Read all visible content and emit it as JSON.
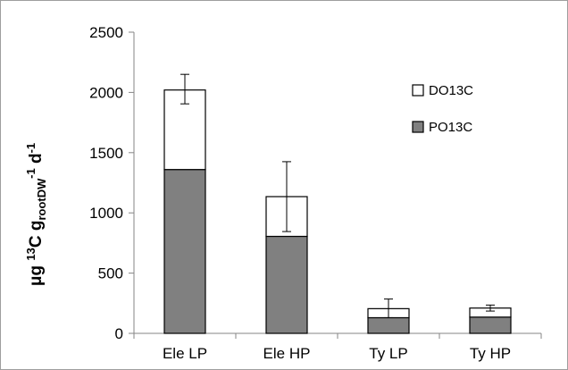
{
  "chart_data": {
    "type": "bar",
    "stacked": true,
    "categories": [
      "Ele LP",
      "Ele HP",
      "Ty LP",
      "Ty HP"
    ],
    "series": [
      {
        "name": "PO13C",
        "values": [
          1360,
          805,
          130,
          135
        ],
        "color": "#808080"
      },
      {
        "name": "DO13C",
        "values": [
          660,
          330,
          75,
          75
        ],
        "color": "#ffffff"
      }
    ],
    "totals": [
      2020,
      1135,
      205,
      210
    ],
    "error_bars": [
      {
        "low": 1905,
        "high": 2150
      },
      {
        "low": 845,
        "high": 1425
      },
      {
        "low": 130,
        "high": 285
      },
      {
        "low": 185,
        "high": 235
      }
    ],
    "ylabel": {
      "prefix": "μg ",
      "sup1": "13",
      "mid": "C g",
      "sub": "rootDW",
      "sup2": "-1",
      "suffix": " d",
      "sup3": "-1"
    },
    "ylim": [
      0,
      2500
    ],
    "yticks": [
      "0",
      "500",
      "1000",
      "1500",
      "2000",
      "2500"
    ],
    "grid": false,
    "legend_position": "top-right",
    "legend": [
      {
        "label": "DO13C",
        "color": "#ffffff"
      },
      {
        "label": "PO13C",
        "color": "#808080"
      }
    ]
  }
}
